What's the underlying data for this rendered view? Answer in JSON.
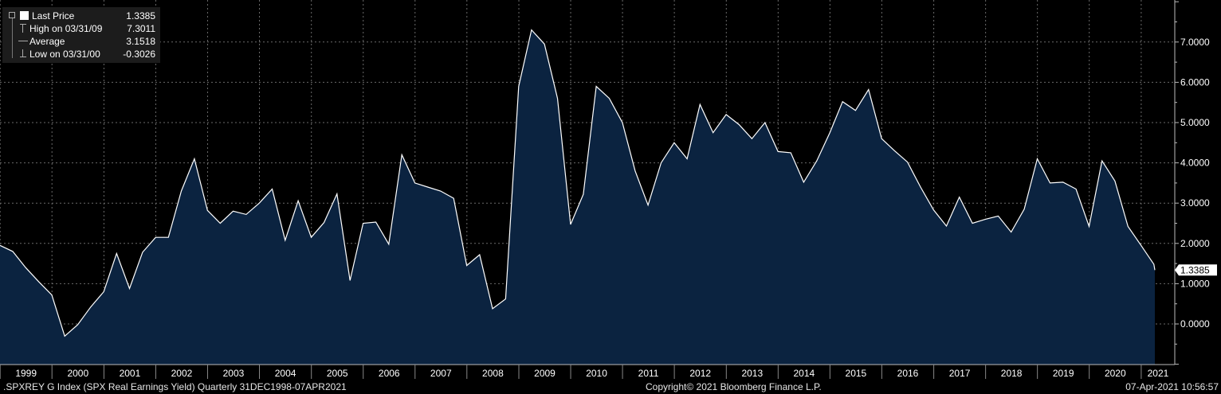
{
  "legend": {
    "last_price": {
      "label": "Last Price",
      "value": "1.3385"
    },
    "high": {
      "label": "High on 03/31/09",
      "value": "7.3011"
    },
    "average": {
      "label": "Average",
      "value": "3.1518"
    },
    "low": {
      "label": "Low on 03/31/00",
      "value": "-0.3026"
    }
  },
  "footer": {
    "left": ".SPXREY G Index (SPX Real Earnings Yield)  Quarterly 31DEC1998-07APR2021",
    "center": "Copyright© 2021 Bloomberg Finance L.P.",
    "right": "07-Apr-2021 10:56:57"
  },
  "colors": {
    "background": "#000000",
    "fill": "#0b2340",
    "line": "#ffffff",
    "grid": "#6a6a6a"
  },
  "chart_data": {
    "type": "area",
    "title": "",
    "xlabel": "",
    "ylabel": "",
    "ylim": [
      -1,
      8
    ],
    "y_ticks": [
      "7.0000",
      "6.0000",
      "5.0000",
      "4.0000",
      "3.0000",
      "2.0000",
      "1.0000",
      "0.0000"
    ],
    "y_tick_values": [
      7,
      6,
      5,
      4,
      3,
      2,
      1,
      0
    ],
    "x_ticks": [
      "1999",
      "2000",
      "2001",
      "2002",
      "2003",
      "2004",
      "2005",
      "2006",
      "2007",
      "2008",
      "2009",
      "2010",
      "2011",
      "2012",
      "2013",
      "2014",
      "2015",
      "2016",
      "2017",
      "2018",
      "2019",
      "2020",
      "2021"
    ],
    "grid": true,
    "last_value_label": "1.3385",
    "series": [
      {
        "x": [
          "1998-12-31",
          "1999-03-31",
          "1999-06-30",
          "1999-09-30",
          "1999-12-31",
          "2000-03-31",
          "2000-06-30",
          "2000-09-30",
          "2000-12-31",
          "2001-03-31",
          "2001-06-30",
          "2001-09-30",
          "2001-12-31",
          "2002-03-31",
          "2002-06-30",
          "2002-09-30",
          "2002-12-31",
          "2003-03-31",
          "2003-06-30",
          "2003-09-30",
          "2003-12-31",
          "2004-03-31",
          "2004-06-30",
          "2004-09-30",
          "2004-12-31",
          "2005-03-31",
          "2005-06-30",
          "2005-09-30",
          "2005-12-31",
          "2006-03-31",
          "2006-06-30",
          "2006-09-30",
          "2006-12-31",
          "2007-03-31",
          "2007-06-30",
          "2007-09-30",
          "2007-12-31",
          "2008-03-31",
          "2008-06-30",
          "2008-09-30",
          "2008-12-31",
          "2009-03-31",
          "2009-06-30",
          "2009-09-30",
          "2009-12-31",
          "2010-03-31",
          "2010-06-30",
          "2010-09-30",
          "2010-12-31",
          "2011-03-31",
          "2011-06-30",
          "2011-09-30",
          "2011-12-31",
          "2012-03-31",
          "2012-06-30",
          "2012-09-30",
          "2012-12-31",
          "2013-03-31",
          "2013-06-30",
          "2013-09-30",
          "2013-12-31",
          "2014-03-31",
          "2014-06-30",
          "2014-09-30",
          "2014-12-31",
          "2015-03-31",
          "2015-06-30",
          "2015-09-30",
          "2015-12-31",
          "2016-03-31",
          "2016-06-30",
          "2016-09-30",
          "2016-12-31",
          "2017-03-31",
          "2017-06-30",
          "2017-09-30",
          "2017-12-31",
          "2018-03-31",
          "2018-06-30",
          "2018-09-30",
          "2018-12-31",
          "2019-03-31",
          "2019-06-30",
          "2019-09-30",
          "2019-12-31",
          "2020-03-31",
          "2020-06-30",
          "2020-09-30",
          "2020-12-31",
          "2021-03-31",
          "2021-04-07"
        ],
        "values": [
          1.95,
          1.8,
          1.4,
          1.05,
          0.72,
          -0.3026,
          -0.02,
          0.42,
          0.8,
          1.75,
          0.88,
          1.78,
          2.15,
          2.15,
          3.3,
          4.1,
          2.82,
          2.5,
          2.8,
          2.72,
          3.0,
          3.35,
          2.08,
          3.06,
          2.15,
          2.52,
          3.23,
          1.08,
          2.5,
          2.53,
          1.98,
          4.2,
          3.5,
          3.4,
          3.3,
          3.12,
          1.45,
          1.72,
          0.38,
          0.62,
          5.9,
          7.3011,
          6.95,
          5.6,
          2.47,
          3.22,
          5.9,
          5.6,
          5.0,
          3.8,
          2.95,
          4.0,
          4.5,
          4.1,
          5.45,
          4.75,
          5.2,
          4.95,
          4.6,
          5.0,
          4.28,
          4.25,
          3.52,
          4.05,
          4.75,
          5.52,
          5.3,
          5.82,
          4.6,
          4.3,
          4.02,
          3.4,
          2.83,
          2.43,
          3.15,
          2.5,
          2.6,
          2.68,
          2.28,
          2.85,
          4.1,
          3.5,
          3.52,
          3.35,
          2.42,
          4.05,
          3.55,
          2.42,
          1.95,
          1.48,
          1.3385
        ]
      }
    ]
  }
}
